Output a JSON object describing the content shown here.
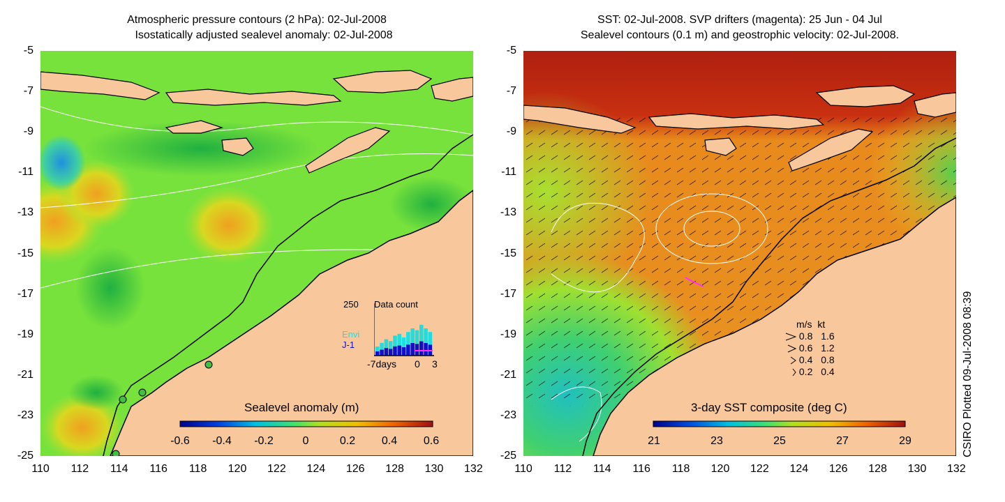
{
  "left_panel": {
    "title_line1": "Atmospheric pressure contours (2 hPa): 02-Jul-2008",
    "title_line2": "Isostatically adjusted sealevel anomaly: 02-Jul-2008",
    "colorbar_label": "Sealevel anomaly (m)",
    "colorbar_ticks": [
      "-0.6",
      "-0.4",
      "-0.2",
      "0",
      "0.2",
      "0.4",
      "0.6"
    ],
    "inset": {
      "top_value": "250",
      "title": "Data count",
      "series": [
        "Envi",
        "J-1"
      ],
      "series_colors": [
        "#22dddd",
        "#1010cc"
      ],
      "x_ticks": [
        "-7days",
        "0",
        "3"
      ]
    }
  },
  "right_panel": {
    "title_line1": "SST: 02-Jul-2008. SVP drifters (magenta): 25 Jun - 04 Jul",
    "title_line2": "Sealevel contours (0.1 m) and geostrophic velocity: 02-Jul-2008.",
    "colorbar_label": "3-day SST composite (deg C)",
    "colorbar_ticks": [
      "21",
      "23",
      "25",
      "27",
      "29"
    ],
    "velocity_legend": {
      "header": [
        "m/s",
        "kt"
      ],
      "rows": [
        [
          "0.8",
          "1.6"
        ],
        [
          "0.6",
          "1.2"
        ],
        [
          "0.4",
          "0.8"
        ],
        [
          "0.2",
          "0.4"
        ]
      ]
    }
  },
  "axes": {
    "y_ticks": [
      "-5",
      "-7",
      "-9",
      "-11",
      "-13",
      "-15",
      "-17",
      "-19",
      "-21",
      "-23",
      "-25"
    ],
    "x_ticks": [
      "110",
      "112",
      "114",
      "116",
      "118",
      "120",
      "122",
      "124",
      "126",
      "128",
      "130",
      "132"
    ]
  },
  "credit": "CSIRO Plotted 09-Jul-2008 08:39",
  "colors": {
    "land": "#f8c89c",
    "ocean_left": "#6ee03a",
    "ocean_right": "#e88a1c"
  }
}
